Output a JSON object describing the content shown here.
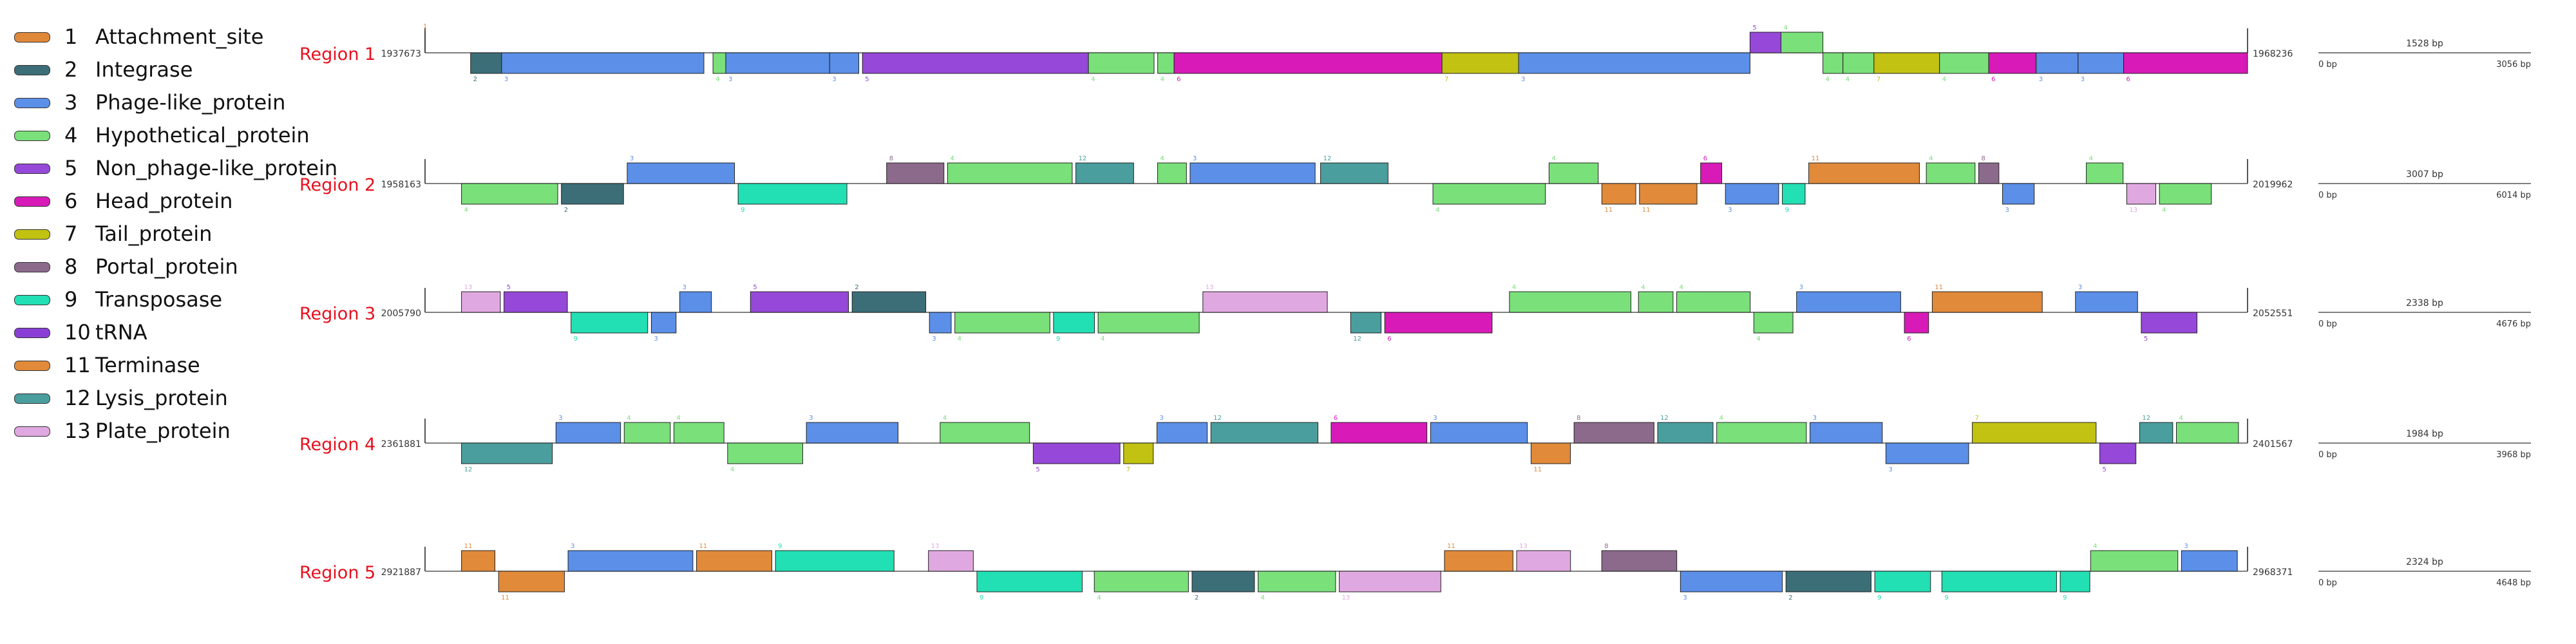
{
  "legend": [
    {
      "num": "1",
      "label": "Attachment_site",
      "color": "#e0883a"
    },
    {
      "num": "2",
      "label": "Integrase",
      "color": "#3c6e78"
    },
    {
      "num": "3",
      "label": "Phage-like_protein",
      "color": "#5b8fe8"
    },
    {
      "num": "4",
      "label": "Hypothetical_protein",
      "color": "#7ae07a"
    },
    {
      "num": "5",
      "label": "Non_phage-like_protein",
      "color": "#9648d8"
    },
    {
      "num": "6",
      "label": "Head_protein",
      "color": "#d81ab8"
    },
    {
      "num": "7",
      "label": "Tail_protein",
      "color": "#c2c212"
    },
    {
      "num": "8",
      "label": "Portal_protein",
      "color": "#8c6a8c"
    },
    {
      "num": "9",
      "label": "Transposase",
      "color": "#22e0b4"
    },
    {
      "num": "10",
      "label": "tRNA",
      "color": "#8a3ed6"
    },
    {
      "num": "11",
      "label": "Terminase",
      "color": "#e08a3a"
    },
    {
      "num": "12",
      "label": "Lysis_protein",
      "color": "#4a9e9e"
    },
    {
      "num": "13",
      "label": "Plate_protein",
      "color": "#e0a8e0"
    }
  ],
  "regions": [
    {
      "label": "Region 1",
      "start": "1937673",
      "end": "1968236",
      "scale_label": "1528 bp",
      "scale_min": "0 bp",
      "scale_max": "3056 bp",
      "genes": [
        {
          "s": 0.0,
          "e": 0.003,
          "t": 1,
          "strand": "+"
        },
        {
          "s": 0.025,
          "e": 0.042,
          "t": 2,
          "strand": "-"
        },
        {
          "s": 0.042,
          "e": 0.153,
          "t": 3,
          "strand": "-"
        },
        {
          "s": 0.158,
          "e": 0.165,
          "t": 4,
          "strand": "-"
        },
        {
          "s": 0.165,
          "e": 0.222,
          "t": 3,
          "strand": "-"
        },
        {
          "s": 0.222,
          "e": 0.238,
          "t": 3,
          "strand": "-"
        },
        {
          "s": 0.24,
          "e": 0.364,
          "t": 5,
          "strand": "-"
        },
        {
          "s": 0.364,
          "e": 0.4,
          "t": 4,
          "strand": "-"
        },
        {
          "s": 0.402,
          "e": 0.411,
          "t": 4,
          "strand": "-"
        },
        {
          "s": 0.411,
          "e": 0.558,
          "t": 6,
          "strand": "-"
        },
        {
          "s": 0.558,
          "e": 0.6,
          "t": 7,
          "strand": "-"
        },
        {
          "s": 0.6,
          "e": 0.727,
          "t": 3,
          "strand": "-"
        },
        {
          "s": 0.727,
          "e": 0.744,
          "t": 5,
          "strand": "+"
        },
        {
          "s": 0.744,
          "e": 0.767,
          "t": 4,
          "strand": "+"
        },
        {
          "s": 0.767,
          "e": 0.778,
          "t": 4,
          "strand": "-"
        },
        {
          "s": 0.778,
          "e": 0.795,
          "t": 4,
          "strand": "-"
        },
        {
          "s": 0.795,
          "e": 0.831,
          "t": 7,
          "strand": "-"
        },
        {
          "s": 0.831,
          "e": 0.858,
          "t": 4,
          "strand": "-"
        },
        {
          "s": 0.858,
          "e": 0.884,
          "t": 6,
          "strand": "-"
        },
        {
          "s": 0.884,
          "e": 0.907,
          "t": 3,
          "strand": "-"
        },
        {
          "s": 0.907,
          "e": 0.932,
          "t": 3,
          "strand": "-"
        },
        {
          "s": 0.932,
          "e": 1.0,
          "t": 6,
          "strand": "-"
        }
      ]
    },
    {
      "label": "Region 2",
      "start": "1958163",
      "end": "2019962",
      "scale_label": "3007 bp",
      "scale_min": "0 bp",
      "scale_max": "6014 bp",
      "genes": []
    },
    {
      "label": "Region 3",
      "start": "2005790",
      "end": "2052551",
      "scale_label": "2338 bp",
      "scale_min": "0 bp",
      "scale_max": "4676 bp",
      "genes": []
    },
    {
      "label": "Region 4",
      "start": "2361881",
      "end": "2401567",
      "scale_label": "1984 bp",
      "scale_min": "0 bp",
      "scale_max": "3968 bp",
      "genes": []
    },
    {
      "label": "Region 5",
      "start": "2921887",
      "end": "2968371",
      "scale_label": "2324 bp",
      "scale_min": "0 bp",
      "scale_max": "4648 bp",
      "genes": []
    }
  ]
}
